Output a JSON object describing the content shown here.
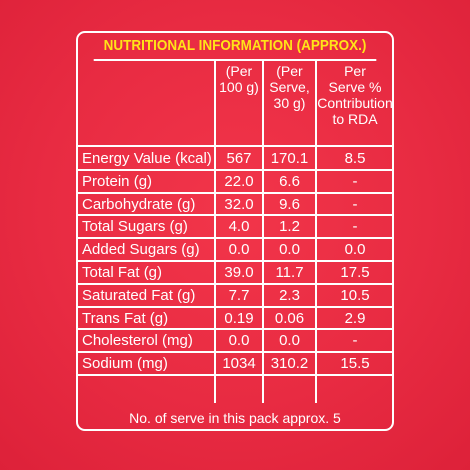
{
  "title": "NUTRITIONAL INFORMATION (APPROX.)",
  "headers": {
    "col1": [
      "(Per",
      "100 g)"
    ],
    "col2": [
      "(Per",
      "Serve,",
      "30 g)"
    ],
    "col3": [
      "Per",
      "Serve %",
      "Contribution",
      "to RDA"
    ]
  },
  "rows": [
    {
      "label": "Energy Value (kcal)",
      "per100": "567",
      "perServe": "170.1",
      "rda": "8.5"
    },
    {
      "label": "Protein (g)",
      "per100": "22.0",
      "perServe": "6.6",
      "rda": "-"
    },
    {
      "label": "Carbohydrate (g)",
      "per100": "32.0",
      "perServe": "9.6",
      "rda": "-"
    },
    {
      "label": "Total Sugars (g)",
      "per100": "4.0",
      "perServe": "1.2",
      "rda": "-"
    },
    {
      "label": "Added Sugars (g)",
      "per100": "0.0",
      "perServe": "0.0",
      "rda": "0.0"
    },
    {
      "label": "Total Fat (g)",
      "per100": "39.0",
      "perServe": "11.7",
      "rda": "17.5"
    },
    {
      "label": "Saturated Fat (g)",
      "per100": "7.7",
      "perServe": "2.3",
      "rda": "10.5"
    },
    {
      "label": "Trans Fat (g)",
      "per100": "0.19",
      "perServe": "0.06",
      "rda": "2.9"
    },
    {
      "label": "Cholesterol (mg)",
      "per100": "0.0",
      "perServe": "0.0",
      "rda": "-"
    },
    {
      "label": "Sodium (mg)",
      "per100": "1034",
      "perServe": "310.2",
      "rda": "15.5"
    }
  ],
  "footer": "No. of serve in this pack approx. 5",
  "colors": {
    "background": "#e82b42",
    "title": "#ffe418",
    "text": "#ffffff"
  }
}
